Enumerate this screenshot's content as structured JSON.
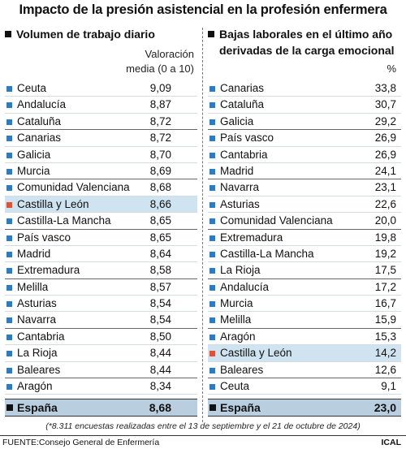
{
  "title": "Impacto de la presión asistencial en la profesión enfermera",
  "note": "(*8.311 encuestas realizadas entre el 13 de septiembre y el 21 de octubre de 2024)",
  "source": "FUENTE:Consejo General de Enfermería",
  "credit": "ICAL",
  "colors": {
    "marker": "#2e7bbf",
    "highlight_marker": "#d9553a",
    "highlight_bg": "#cfe3f0",
    "total_bg": "#b9cfe0"
  },
  "chart_data": [
    {
      "type": "table",
      "title": "Volumen de trabajo diario",
      "column_header": "Valoración media (0 a 10)",
      "column_header_line1": "Valoración",
      "column_header_line2": "media (0 a 10)",
      "highlight": "Castilla y León",
      "categories": [
        "Ceuta",
        "Andalucía",
        "Cataluña",
        "Canarias",
        "Galicia",
        "Murcia",
        "Comunidad Valenciana",
        "Castilla y León",
        "Castilla-La Mancha",
        "País vasco",
        "Madrid",
        "Extremadura",
        "Melilla",
        "Asturias",
        "Navarra",
        "Cantabria",
        "La Rioja",
        "Baleares",
        "Aragón"
      ],
      "values": [
        "9,09",
        "8,87",
        "8,72",
        "8,72",
        "8,70",
        "8,69",
        "8,68",
        "8,66",
        "8,65",
        "8,65",
        "8,64",
        "8,58",
        "8,57",
        "8,54",
        "8,54",
        "8,50",
        "8,44",
        "8,44",
        "8,34"
      ],
      "total": {
        "label": "España",
        "value": "8,68"
      }
    },
    {
      "type": "table",
      "title": "Bajas laborales en el último año derivadas de la carga emocional",
      "title_line1": "Bajas laborales en el último año",
      "title_line2": "derivadas de la carga emocional",
      "column_header": "%",
      "highlight": "Castilla y León",
      "categories": [
        "Canarias",
        "Cataluña",
        "Galicia",
        "País vasco",
        "Cantabria",
        "Madrid",
        "Navarra",
        "Asturias",
        "Comunidad Valenciana",
        "Extremadura",
        "Castilla-La Mancha",
        "La Rioja",
        "Andalucía",
        "Murcia",
        "Melilla",
        "Aragón",
        "Castilla y León",
        "Baleares",
        "Ceuta"
      ],
      "values": [
        "33,8",
        "30,7",
        "29,2",
        "26,9",
        "26,9",
        "24,1",
        "23,1",
        "22,6",
        "20,0",
        "19,8",
        "19,2",
        "17,5",
        "17,2",
        "16,7",
        "15,9",
        "15,3",
        "14,2",
        "12,6",
        "9,1"
      ],
      "total": {
        "label": "España",
        "value": "23,0"
      }
    }
  ]
}
